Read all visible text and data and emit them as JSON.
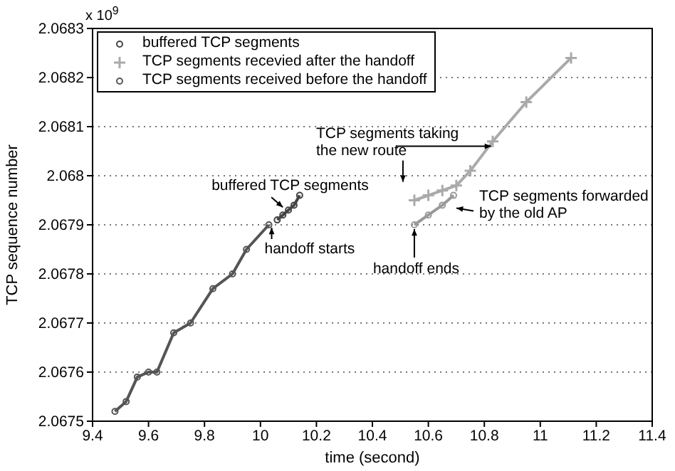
{
  "chart_data": {
    "type": "line",
    "xlabel": "time (second)",
    "ylabel": "TCP sequence number",
    "xlim": [
      9.4,
      11.4
    ],
    "xticks": [
      9.4,
      9.6,
      9.8,
      10,
      10.2,
      10.4,
      10.6,
      10.8,
      11,
      11.2,
      11.4
    ],
    "ylim": [
      2.0675,
      2.0683
    ],
    "yticks": [
      2.0675,
      2.0676,
      2.0677,
      2.0678,
      2.0679,
      2.068,
      2.0681,
      2.0682,
      2.0683
    ],
    "grid": "y",
    "legend": "top left",
    "line_style": "solid",
    "series": [
      {
        "name": "buffered TCP segments",
        "color": "#444444",
        "marker": "circle",
        "x": [
          10.06,
          10.08,
          10.1,
          10.12,
          10.14
        ],
        "values": [
          2.06791,
          2.06792,
          2.06793,
          2.06794,
          2.06796
        ]
      },
      {
        "name": "TCP segments recevied after the handoff",
        "color": "#aaaaaa",
        "marker": "cross",
        "x": [
          10.55,
          10.6,
          10.65,
          10.7,
          10.75,
          10.83,
          10.95,
          11.11
        ],
        "values": [
          2.06795,
          2.06796,
          2.06797,
          2.06798,
          2.06801,
          2.06807,
          2.06815,
          2.06824
        ]
      },
      {
        "name": "TCP segments received before the handoff",
        "color": "#555555",
        "marker": "circle",
        "x": [
          9.48,
          9.52,
          9.56,
          9.6,
          9.63,
          9.69,
          9.75,
          9.83,
          9.9,
          9.95,
          10.03
        ],
        "values": [
          2.06752,
          2.06754,
          2.06759,
          2.0676,
          2.0676,
          2.06768,
          2.0677,
          2.06777,
          2.0678,
          2.06785,
          2.0679
        ]
      },
      {
        "color": "#999999",
        "marker": "circle",
        "x": [
          10.55,
          10.6,
          10.65,
          10.69
        ],
        "values": [
          2.0679,
          2.06792,
          2.06794,
          2.06796
        ]
      }
    ],
    "annotations": [
      "x 10$^{9}$",
      {
        "text": "buffered TCP segments",
        "x": 10.09,
        "y": 2.06793
      },
      {
        "text": "handoff starts",
        "x": 10.04,
        "y": 2.0679
      },
      {
        "text": "TCP segments taking the new route",
        "x": 10.84,
        "y": 2.06806
      },
      {
        "text": "TCP segments forwarded by the old AP",
        "x": 10.68,
        "y": 2.06794
      },
      {
        "text": "handoff ends",
        "x": 10.55,
        "y": 2.0679
      }
    ]
  }
}
